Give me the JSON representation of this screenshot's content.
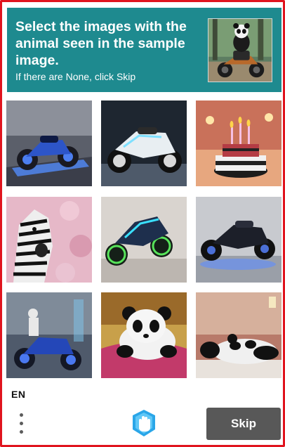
{
  "header": {
    "title": "Select the images with the animal seen in the sample image.",
    "subtitle": "If there are None, click Skip",
    "sample_image": "panda-riding-motorcycle",
    "background_color": "#1e8a8f"
  },
  "tiles": [
    {
      "subject": "blue-motorcycle-on-platform"
    },
    {
      "subject": "white-neon-motorcycle"
    },
    {
      "subject": "birthday-cake-candles"
    },
    {
      "subject": "zebra-pink-flowers"
    },
    {
      "subject": "neon-green-motorcycle"
    },
    {
      "subject": "dark-sport-motorcycle"
    },
    {
      "subject": "rider-blue-motorcycle"
    },
    {
      "subject": "panda-on-pink-pillow"
    },
    {
      "subject": "panda-sleeping-on-table"
    }
  ],
  "footer": {
    "language": "EN",
    "menu_icon": "more-vertical-icon",
    "logo_icon": "hand-logo-icon",
    "skip_label": "Skip",
    "skip_color": "#585858"
  }
}
